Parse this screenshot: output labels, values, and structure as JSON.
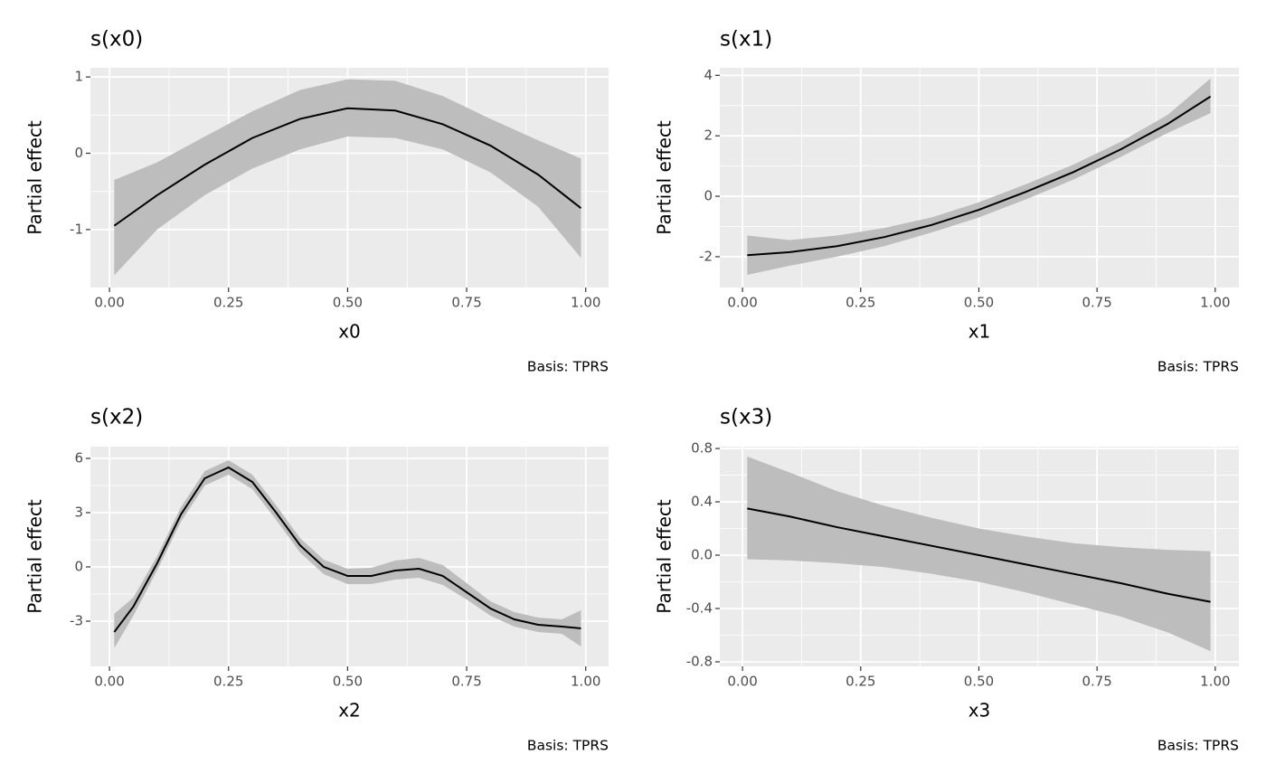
{
  "chart_data": [
    {
      "type": "line",
      "title": "s(x0)",
      "xlabel": "x0",
      "ylabel": "Partial effect",
      "caption": "Basis: TPRS",
      "x": [
        0.01,
        0.1,
        0.2,
        0.3,
        0.4,
        0.5,
        0.6,
        0.7,
        0.8,
        0.9,
        0.99
      ],
      "values": [
        -0.95,
        -0.55,
        -0.15,
        0.2,
        0.45,
        0.59,
        0.56,
        0.38,
        0.1,
        -0.28,
        -0.72
      ],
      "lower": [
        -1.6,
        -1.0,
        -0.55,
        -0.2,
        0.05,
        0.22,
        0.2,
        0.05,
        -0.25,
        -0.7,
        -1.37
      ],
      "upper": [
        -0.35,
        -0.12,
        0.22,
        0.55,
        0.83,
        0.97,
        0.95,
        0.75,
        0.45,
        0.17,
        -0.07
      ],
      "color": "#000000",
      "band_color": "#bdbdbd",
      "xlim": [
        -0.04,
        1.048
      ],
      "ylim": [
        -1.76,
        1.12
      ],
      "xticks": [
        {
          "value": 0,
          "label": "0.00"
        },
        {
          "value": 0.25,
          "label": "0.25"
        },
        {
          "value": 0.5,
          "label": "0.50"
        },
        {
          "value": 0.75,
          "label": "0.75"
        },
        {
          "value": 1,
          "label": "1.00"
        }
      ],
      "yticks": [
        -1,
        0,
        1
      ],
      "grid": true
    },
    {
      "type": "line",
      "title": "s(x1)",
      "xlabel": "x1",
      "ylabel": "Partial effect",
      "caption": "Basis: TPRS",
      "x": [
        0.01,
        0.1,
        0.2,
        0.3,
        0.4,
        0.5,
        0.6,
        0.7,
        0.8,
        0.9,
        0.99
      ],
      "values": [
        -1.95,
        -1.85,
        -1.65,
        -1.35,
        -0.95,
        -0.45,
        0.15,
        0.8,
        1.55,
        2.4,
        3.3
      ],
      "lower": [
        -2.6,
        -2.3,
        -2.0,
        -1.65,
        -1.2,
        -0.7,
        -0.1,
        0.55,
        1.3,
        2.1,
        2.75
      ],
      "upper": [
        -1.3,
        -1.45,
        -1.3,
        -1.05,
        -0.7,
        -0.2,
        0.4,
        1.05,
        1.8,
        2.7,
        3.9
      ],
      "color": "#000000",
      "band_color": "#bdbdbd",
      "xlim": [
        -0.048,
        1.05
      ],
      "ylim": [
        -3.02,
        4.25
      ],
      "xticks": [
        {
          "value": 0,
          "label": "0.00"
        },
        {
          "value": 0.25,
          "label": "0.25"
        },
        {
          "value": 0.5,
          "label": "0.50"
        },
        {
          "value": 0.75,
          "label": "0.75"
        },
        {
          "value": 1,
          "label": "1.00"
        }
      ],
      "yticks": [
        -2,
        0,
        2,
        4
      ],
      "grid": true
    },
    {
      "type": "line",
      "title": "s(x2)",
      "xlabel": "x2",
      "ylabel": "Partial effect",
      "caption": "Basis: TPRS",
      "x": [
        0.01,
        0.05,
        0.1,
        0.15,
        0.2,
        0.25,
        0.3,
        0.35,
        0.4,
        0.45,
        0.5,
        0.55,
        0.6,
        0.65,
        0.7,
        0.75,
        0.8,
        0.85,
        0.9,
        0.95,
        0.99
      ],
      "values": [
        -3.6,
        -2.2,
        0.2,
        2.9,
        4.9,
        5.5,
        4.7,
        3.0,
        1.2,
        0.0,
        -0.5,
        -0.5,
        -0.2,
        -0.1,
        -0.5,
        -1.4,
        -2.3,
        -2.9,
        -3.2,
        -3.3,
        -3.4
      ],
      "lower": [
        -4.5,
        -2.7,
        -0.2,
        2.5,
        4.5,
        5.1,
        4.3,
        2.6,
        0.8,
        -0.4,
        -0.95,
        -0.95,
        -0.7,
        -0.6,
        -1.0,
        -1.8,
        -2.7,
        -3.3,
        -3.6,
        -3.7,
        -4.4
      ],
      "upper": [
        -2.6,
        -1.7,
        0.6,
        3.3,
        5.3,
        5.9,
        5.1,
        3.4,
        1.6,
        0.4,
        -0.1,
        -0.05,
        0.35,
        0.5,
        0.1,
        -0.9,
        -1.9,
        -2.5,
        -2.8,
        -2.9,
        -2.4
      ],
      "color": "#000000",
      "band_color": "#bdbdbd",
      "xlim": [
        -0.04,
        1.048
      ],
      "ylim": [
        -5.5,
        6.65
      ],
      "xticks": [
        {
          "value": 0,
          "label": "0.00"
        },
        {
          "value": 0.25,
          "label": "0.25"
        },
        {
          "value": 0.5,
          "label": "0.50"
        },
        {
          "value": 0.75,
          "label": "0.75"
        },
        {
          "value": 1,
          "label": "1.00"
        }
      ],
      "yticks": [
        -3,
        0,
        3,
        6
      ],
      "grid": true
    },
    {
      "type": "line",
      "title": "s(x3)",
      "xlabel": "x3",
      "ylabel": "Partial effect",
      "caption": "Basis: TPRS",
      "x": [
        0.01,
        0.1,
        0.2,
        0.3,
        0.4,
        0.5,
        0.6,
        0.7,
        0.8,
        0.9,
        0.99
      ],
      "values": [
        0.35,
        0.29,
        0.21,
        0.14,
        0.07,
        0.0,
        -0.07,
        -0.14,
        -0.21,
        -0.29,
        -0.35
      ],
      "lower": [
        -0.03,
        -0.04,
        -0.06,
        -0.09,
        -0.14,
        -0.2,
        -0.28,
        -0.37,
        -0.46,
        -0.58,
        -0.72
      ],
      "upper": [
        0.74,
        0.62,
        0.48,
        0.37,
        0.28,
        0.2,
        0.14,
        0.09,
        0.06,
        0.04,
        0.03
      ],
      "color": "#000000",
      "band_color": "#bdbdbd",
      "xlim": [
        -0.048,
        1.05
      ],
      "ylim": [
        -0.834,
        0.814
      ],
      "xticks": [
        {
          "value": 0,
          "label": "0.00"
        },
        {
          "value": 0.25,
          "label": "0.25"
        },
        {
          "value": 0.5,
          "label": "0.50"
        },
        {
          "value": 0.75,
          "label": "0.75"
        },
        {
          "value": 1,
          "label": "1.00"
        }
      ],
      "yticks": [
        -0.8,
        -0.4,
        {
          "value": 0,
          "label": "0.0"
        },
        0.4,
        0.8
      ],
      "grid": true
    }
  ]
}
